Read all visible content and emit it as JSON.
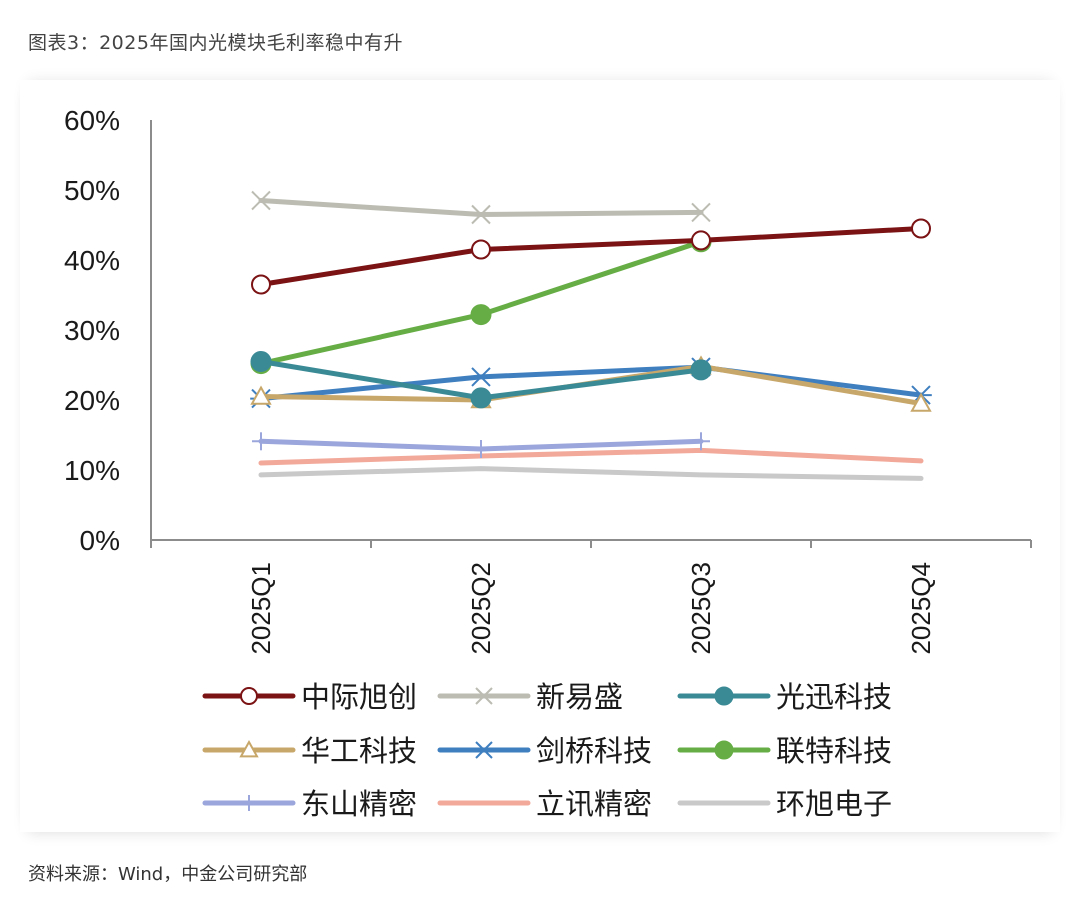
{
  "header": {
    "title": "图表3：2025年国内光模块毛利率稳中有升"
  },
  "footer": {
    "source": "资料来源：Wind，中金公司研究部"
  },
  "chart_data": {
    "type": "line",
    "categories": [
      "2025Q1",
      "2025Q2",
      "2025Q3",
      "2025Q4"
    ],
    "ylim": [
      0,
      60
    ],
    "yticks": [
      "0%",
      "10%",
      "20%",
      "30%",
      "40%",
      "50%",
      "60%"
    ],
    "series": [
      {
        "name": "中际旭创",
        "values": [
          36.5,
          41.5,
          42.8,
          44.5
        ],
        "color": "#7b1214",
        "marker": "circle-open"
      },
      {
        "name": "新易盛",
        "values": [
          48.5,
          46.5,
          46.8,
          null
        ],
        "color": "#bcbcb3",
        "marker": "x"
      },
      {
        "name": "光迅科技",
        "values": [
          25.5,
          20.3,
          24.3,
          null
        ],
        "color": "#3a8a96",
        "marker": "circle-filled"
      },
      {
        "name": "华工科技",
        "values": [
          20.5,
          20.0,
          24.8,
          19.5
        ],
        "color": "#c8a76a",
        "marker": "triangle-open"
      },
      {
        "name": "剑桥科技",
        "values": [
          20.2,
          23.3,
          24.7,
          20.7
        ],
        "color": "#3f7fbf",
        "marker": "asterisk"
      },
      {
        "name": "联特科技",
        "values": [
          25.2,
          32.2,
          42.6,
          null
        ],
        "color": "#66ad45",
        "marker": "circle-filled"
      },
      {
        "name": "东山精密",
        "values": [
          14.1,
          13.0,
          14.1,
          null
        ],
        "color": "#9aa6dc",
        "marker": "plus"
      },
      {
        "name": "立讯精密",
        "values": [
          11.0,
          12.0,
          12.8,
          11.3
        ],
        "color": "#f2a99a",
        "marker": "none"
      },
      {
        "name": "环旭电子",
        "values": [
          9.3,
          10.2,
          9.3,
          8.8
        ],
        "color": "#c9c9c9",
        "marker": "none"
      }
    ],
    "legend_position": "bottom",
    "grid": false
  }
}
